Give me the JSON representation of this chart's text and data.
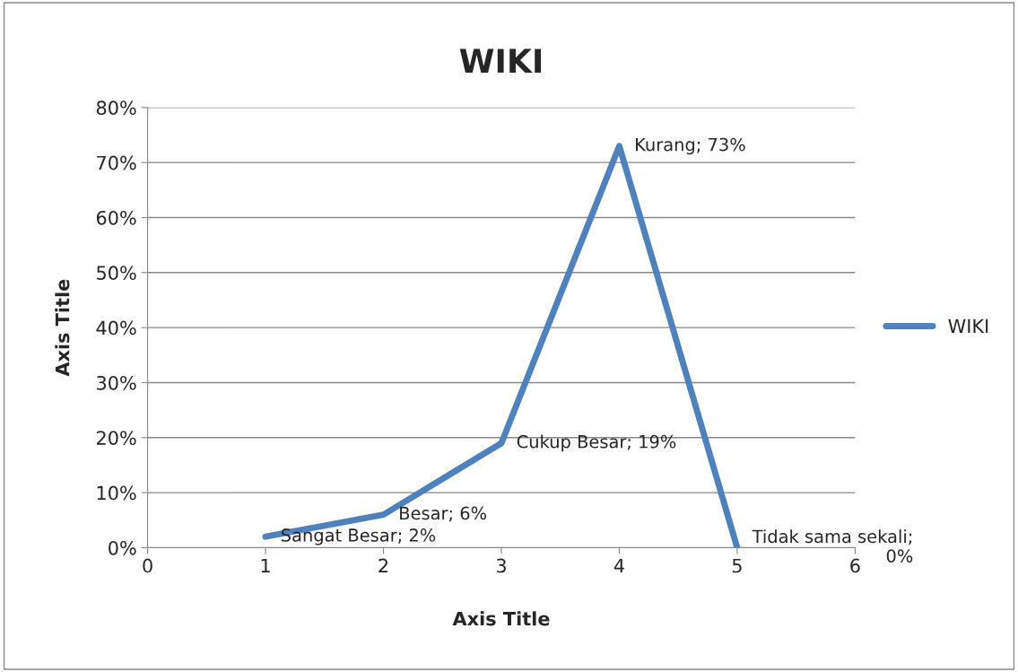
{
  "chart_data": {
    "type": "line",
    "title": "WIKI",
    "xlabel": "Axis Title",
    "ylabel": "Axis Title",
    "x": [
      1,
      2,
      3,
      4,
      5
    ],
    "series": [
      {
        "name": "WIKI",
        "color": "#4f81bd",
        "values": [
          2,
          6,
          19,
          73,
          0
        ],
        "value_labels": [
          "Sangat Besar; 2%",
          "Besar; 6%",
          "Cukup Besar; 19%",
          "Kurang; 73%",
          "Tidak sama sekali;\n0%"
        ]
      }
    ],
    "xlim": [
      0,
      6
    ],
    "xticks": [
      0,
      1,
      2,
      3,
      4,
      5,
      6
    ],
    "ylim": [
      0,
      80
    ],
    "yticks": [
      {
        "value": 0,
        "label": "0%"
      },
      {
        "value": 10,
        "label": "10%"
      },
      {
        "value": 20,
        "label": "20%"
      },
      {
        "value": 30,
        "label": "30%"
      },
      {
        "value": 40,
        "label": "40%"
      },
      {
        "value": 50,
        "label": "50%"
      },
      {
        "value": 60,
        "label": "60%"
      },
      {
        "value": 70,
        "label": "70%"
      },
      {
        "value": 80,
        "label": "80%"
      }
    ],
    "grid": "y",
    "legend": "right",
    "marker": "none",
    "line_style": "solid"
  }
}
